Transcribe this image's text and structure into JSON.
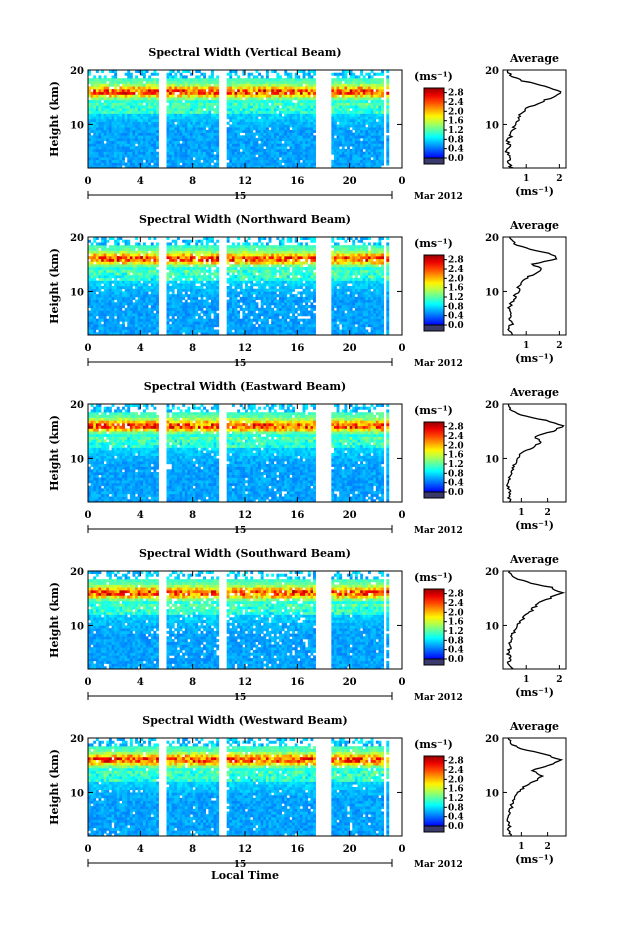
{
  "figure": {
    "xlabel": "Local Time",
    "date_label": "15",
    "month_label": "Mar 2012"
  },
  "chart_data": [
    {
      "type": "heatmap",
      "title": "Spectral Width (Vertical Beam)",
      "ylabel": "Height (km)",
      "x_ticks": [
        "0",
        "4",
        "8",
        "12",
        "16",
        "20",
        "0"
      ],
      "y_ticks": [
        "20",
        "10"
      ],
      "xlim": [
        0,
        24
      ],
      "ylim": [
        2,
        20
      ],
      "colorbar": {
        "unit": "(ms⁻¹)",
        "ticks": [
          "2.8",
          "2.4",
          "2.0",
          "1.6",
          "1.2",
          "0.8",
          "0.4",
          "0.0"
        ],
        "range": [
          0,
          3.0
        ]
      },
      "data_gaps_hours": [
        [
          5.5,
          6.0
        ],
        [
          9.9,
          10.5
        ],
        [
          17.5,
          18.5
        ],
        [
          22.6,
          22.8
        ],
        [
          23.0,
          23.3
        ]
      ],
      "average": {
        "title": "Average",
        "x_ticks": [
          "1",
          "2"
        ],
        "y_ticks": [
          "20",
          "10"
        ],
        "xlim": [
          0.3,
          2.2
        ],
        "xlabel": "(ms⁻¹)",
        "profile": [
          [
            2,
            0.55
          ],
          [
            3,
            0.45
          ],
          [
            4,
            0.5
          ],
          [
            5,
            0.42
          ],
          [
            6,
            0.48
          ],
          [
            7,
            0.45
          ],
          [
            8,
            0.55
          ],
          [
            9,
            0.6
          ],
          [
            10,
            0.7
          ],
          [
            11,
            0.75
          ],
          [
            12,
            0.85
          ],
          [
            13,
            1.05
          ],
          [
            14,
            1.4
          ],
          [
            15,
            1.8
          ],
          [
            16,
            2.05
          ],
          [
            17,
            1.6
          ],
          [
            18,
            0.9
          ],
          [
            19,
            0.55
          ],
          [
            20,
            0.45
          ]
        ]
      }
    },
    {
      "type": "heatmap",
      "title": "Spectral Width (Northward Beam)",
      "ylabel": "Height (km)",
      "x_ticks": [
        "0",
        "4",
        "8",
        "12",
        "16",
        "20",
        "0"
      ],
      "y_ticks": [
        "20",
        "10"
      ],
      "xlim": [
        0,
        24
      ],
      "ylim": [
        2,
        20
      ],
      "colorbar": {
        "unit": "(ms⁻¹)",
        "ticks": [
          "2.8",
          "2.4",
          "2.0",
          "1.6",
          "1.2",
          "0.8",
          "0.4",
          "0.0"
        ],
        "range": [
          0,
          3.0
        ]
      },
      "data_gaps_hours": [
        [
          5.5,
          6.0
        ],
        [
          9.9,
          10.5
        ],
        [
          17.5,
          18.5
        ],
        [
          22.6,
          22.8
        ],
        [
          23.0,
          23.3
        ]
      ],
      "average": {
        "title": "Average",
        "x_ticks": [
          "1",
          "2"
        ],
        "y_ticks": [
          "20",
          "10"
        ],
        "xlim": [
          0.3,
          2.2
        ],
        "xlabel": "(ms⁻¹)",
        "profile": [
          [
            2,
            0.6
          ],
          [
            3,
            0.5
          ],
          [
            4,
            0.55
          ],
          [
            5,
            0.5
          ],
          [
            6,
            0.55
          ],
          [
            7,
            0.5
          ],
          [
            8,
            0.55
          ],
          [
            9,
            0.65
          ],
          [
            10,
            0.75
          ],
          [
            11,
            0.8
          ],
          [
            12,
            0.95
          ],
          [
            13,
            1.15
          ],
          [
            14,
            1.5
          ],
          [
            15,
            1.2
          ],
          [
            16,
            1.95
          ],
          [
            17,
            1.7
          ],
          [
            18,
            0.95
          ],
          [
            19,
            0.6
          ],
          [
            20,
            0.5
          ]
        ]
      }
    },
    {
      "type": "heatmap",
      "title": "Spectral Width (Eastward Beam)",
      "ylabel": "Height (km)",
      "x_ticks": [
        "0",
        "4",
        "8",
        "12",
        "16",
        "20",
        "0"
      ],
      "y_ticks": [
        "20",
        "10"
      ],
      "xlim": [
        0,
        24
      ],
      "ylim": [
        2,
        20
      ],
      "colorbar": {
        "unit": "(ms⁻¹)",
        "ticks": [
          "2.8",
          "2.4",
          "2.0",
          "1.6",
          "1.2",
          "0.8",
          "0.4",
          "0.0"
        ],
        "range": [
          0,
          3.0
        ]
      },
      "data_gaps_hours": [
        [
          5.5,
          6.0
        ],
        [
          9.9,
          10.5
        ],
        [
          17.5,
          18.5
        ],
        [
          22.6,
          22.8
        ],
        [
          23.0,
          23.3
        ]
      ],
      "average": {
        "title": "Average",
        "x_ticks": [
          "1",
          "2"
        ],
        "y_ticks": [
          "20",
          "10"
        ],
        "xlim": [
          0.3,
          2.7
        ],
        "xlabel": "(ms⁻¹)",
        "profile": [
          [
            2,
            0.6
          ],
          [
            3,
            0.5
          ],
          [
            4,
            0.55
          ],
          [
            5,
            0.5
          ],
          [
            6,
            0.55
          ],
          [
            7,
            0.6
          ],
          [
            8,
            0.65
          ],
          [
            9,
            0.75
          ],
          [
            10,
            0.85
          ],
          [
            11,
            1.0
          ],
          [
            12,
            1.4
          ],
          [
            13,
            1.8
          ],
          [
            14,
            1.5
          ],
          [
            15,
            2.2
          ],
          [
            16,
            2.6
          ],
          [
            17,
            1.9
          ],
          [
            18,
            1.0
          ],
          [
            19,
            0.6
          ],
          [
            20,
            0.5
          ]
        ]
      }
    },
    {
      "type": "heatmap",
      "title": "Spectral Width (Southward Beam)",
      "ylabel": "Height (km)",
      "x_ticks": [
        "0",
        "4",
        "8",
        "12",
        "16",
        "20",
        "0"
      ],
      "y_ticks": [
        "20",
        "10"
      ],
      "xlim": [
        0,
        24
      ],
      "ylim": [
        2,
        20
      ],
      "colorbar": {
        "unit": "(ms⁻¹)",
        "ticks": [
          "2.8",
          "2.4",
          "2.0",
          "1.6",
          "1.2",
          "0.8",
          "0.4",
          "0.0"
        ],
        "range": [
          0,
          3.0
        ]
      },
      "data_gaps_hours": [
        [
          5.5,
          6.0
        ],
        [
          9.9,
          10.5
        ],
        [
          17.5,
          18.5
        ],
        [
          22.6,
          22.8
        ],
        [
          23.0,
          23.3
        ]
      ],
      "average": {
        "title": "Average",
        "x_ticks": [
          "1",
          "2"
        ],
        "y_ticks": [
          "20",
          "10"
        ],
        "xlim": [
          0.3,
          2.2
        ],
        "xlabel": "(ms⁻¹)",
        "profile": [
          [
            2,
            0.55
          ],
          [
            3,
            0.45
          ],
          [
            4,
            0.5
          ],
          [
            5,
            0.45
          ],
          [
            6,
            0.5
          ],
          [
            7,
            0.5
          ],
          [
            8,
            0.55
          ],
          [
            9,
            0.65
          ],
          [
            10,
            0.75
          ],
          [
            11,
            0.85
          ],
          [
            12,
            1.0
          ],
          [
            13,
            1.2
          ],
          [
            14,
            1.35
          ],
          [
            15,
            1.7
          ],
          [
            16,
            2.05
          ],
          [
            17,
            1.75
          ],
          [
            18,
            1.0
          ],
          [
            19,
            0.6
          ],
          [
            20,
            0.5
          ]
        ]
      }
    },
    {
      "type": "heatmap",
      "title": "Spectral Width (Westward Beam)",
      "ylabel": "Height (km)",
      "x_ticks": [
        "0",
        "4",
        "8",
        "12",
        "16",
        "20",
        "0"
      ],
      "y_ticks": [
        "20",
        "10"
      ],
      "xlim": [
        0,
        24
      ],
      "ylim": [
        2,
        20
      ],
      "colorbar": {
        "unit": "(ms⁻¹)",
        "ticks": [
          "2.8",
          "2.4",
          "2.0",
          "1.6",
          "1.2",
          "0.8",
          "0.4",
          "0.0"
        ],
        "range": [
          0,
          3.0
        ]
      },
      "data_gaps_hours": [
        [
          5.5,
          6.0
        ],
        [
          9.9,
          10.5
        ],
        [
          17.5,
          18.5
        ],
        [
          22.6,
          22.8
        ],
        [
          23.0,
          23.3
        ]
      ],
      "average": {
        "title": "Average",
        "x_ticks": [
          "1",
          "2"
        ],
        "y_ticks": [
          "20",
          "10"
        ],
        "xlim": [
          0.3,
          2.7
        ],
        "xlabel": "(ms⁻¹)",
        "profile": [
          [
            2,
            0.6
          ],
          [
            3,
            0.5
          ],
          [
            4,
            0.55
          ],
          [
            5,
            0.5
          ],
          [
            6,
            0.55
          ],
          [
            7,
            0.6
          ],
          [
            8,
            0.65
          ],
          [
            9,
            0.75
          ],
          [
            10,
            0.9
          ],
          [
            11,
            1.1
          ],
          [
            12,
            1.5
          ],
          [
            13,
            1.8
          ],
          [
            14,
            1.4
          ],
          [
            15,
            2.1
          ],
          [
            16,
            2.5
          ],
          [
            17,
            1.9
          ],
          [
            18,
            1.0
          ],
          [
            19,
            0.6
          ],
          [
            20,
            0.5
          ]
        ]
      }
    }
  ]
}
